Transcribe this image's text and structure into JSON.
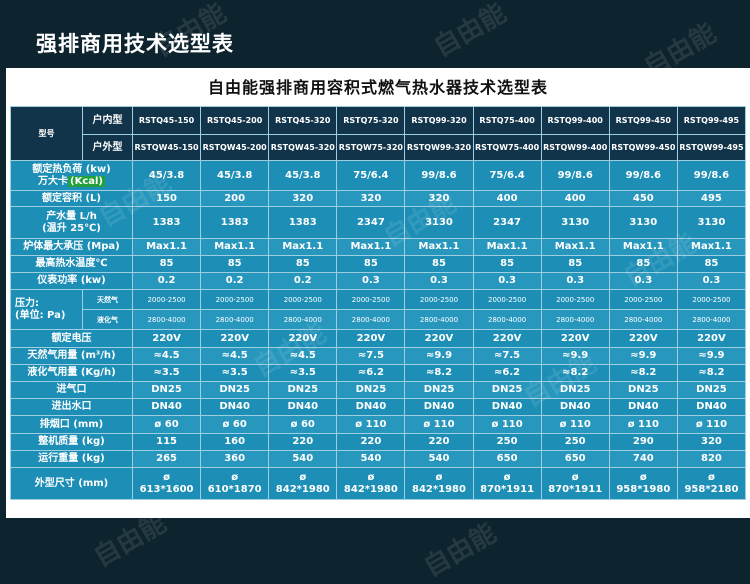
{
  "slide_title": "强排商用技术选型表",
  "table_title": "自由能强排商用容积式燃气热水器技术选型表",
  "corner_label": "型号",
  "indoor_label": "户内型",
  "outdoor_label": "户外型",
  "indoor_models": [
    "RSTQ45-150",
    "RSTQ45-200",
    "RSTQ45-320",
    "RSTQ75-320",
    "RSTQ99-320",
    "RSTQ75-400",
    "RSTQ99-400",
    "RSTQ99-450",
    "RSTQ99-495"
  ],
  "outdoor_models": [
    "RSTQW45-150",
    "RSTQW45-200",
    "RSTQW45-320",
    "RSTQW75-320",
    "RSTQW99-320",
    "RSTQW75-400",
    "RSTQW99-400",
    "RSTQW99-450",
    "RSTQW99-495"
  ],
  "rows": {
    "heat_load": {
      "label_line1": "额定热负荷 (kw)",
      "label_line2": "万大卡",
      "label_unit": "(Kcal)",
      "values": [
        "45/3.8",
        "45/3.8",
        "45/3.8",
        "75/6.4",
        "99/8.6",
        "75/6.4",
        "99/8.6",
        "99/8.6",
        "99/8.6"
      ]
    },
    "volume": {
      "label": "额定容积 (L)",
      "values": [
        "150",
        "200",
        "320",
        "320",
        "320",
        "400",
        "400",
        "450",
        "495"
      ]
    },
    "output": {
      "label_line1": "产水量 L/h",
      "label_line2": "(温升 25℃)",
      "values": [
        "1383",
        "1383",
        "1383",
        "2347",
        "3130",
        "2347",
        "3130",
        "3130",
        "3130"
      ]
    },
    "pressure_max": {
      "label": "炉体最大承压 (Mpa)",
      "values": [
        "Max1.1",
        "Max1.1",
        "Max1.1",
        "Max1.1",
        "Max1.1",
        "Max1.1",
        "Max1.1",
        "Max1.1",
        "Max1.1"
      ]
    },
    "max_temp": {
      "label": "最高热水温度℃",
      "values": [
        "85",
        "85",
        "85",
        "85",
        "85",
        "85",
        "85",
        "85",
        "85"
      ]
    },
    "power": {
      "label": "仪表功率 (kw)",
      "values": [
        "0.2",
        "0.2",
        "0.2",
        "0.3",
        "0.3",
        "0.3",
        "0.3",
        "0.3",
        "0.3"
      ]
    },
    "pressure": {
      "label_line1": "压力:",
      "label_line2": "(单位: Pa)",
      "natural_gas_label": "天然气",
      "lpg_label": "液化气",
      "natural_gas_values": [
        "2000-2500",
        "2000-2500",
        "2000-2500",
        "2000-2500",
        "2000-2500",
        "2000-2500",
        "2000-2500",
        "2000-2500",
        "2000-2500"
      ],
      "lpg_values": [
        "2800-4000",
        "2800-4000",
        "2800-4000",
        "2800-4000",
        "2800-4000",
        "2800-4000",
        "2800-4000",
        "2800-4000",
        "2800-4000"
      ]
    },
    "voltage": {
      "label": "额定电压",
      "values": [
        "220V",
        "220V",
        "220V",
        "220V",
        "220V",
        "220V",
        "220V",
        "220V",
        "220V"
      ]
    },
    "natural_gas_use": {
      "label": "天然气用量 (m³/h)",
      "values": [
        "≈4.5",
        "≈4.5",
        "≈4.5",
        "≈7.5",
        "≈9.9",
        "≈7.5",
        "≈9.9",
        "≈9.9",
        "≈9.9"
      ]
    },
    "lpg_use": {
      "label": "液化气用量 (Kg/h)",
      "values": [
        "≈3.5",
        "≈3.5",
        "≈3.5",
        "≈6.2",
        "≈8.2",
        "≈6.2",
        "≈8.2",
        "≈8.2",
        "≈8.2"
      ]
    },
    "gas_inlet": {
      "label": "进气口",
      "values": [
        "DN25",
        "DN25",
        "DN25",
        "DN25",
        "DN25",
        "DN25",
        "DN25",
        "DN25",
        "DN25"
      ]
    },
    "water_io": {
      "label": "进出水口",
      "values": [
        "DN40",
        "DN40",
        "DN40",
        "DN40",
        "DN40",
        "DN40",
        "DN40",
        "DN40",
        "DN40"
      ]
    },
    "flue": {
      "label": "排烟口 (mm)",
      "values": [
        "ø 60",
        "ø 60",
        "ø 60",
        "ø 110",
        "ø 110",
        "ø 110",
        "ø 110",
        "ø 110",
        "ø 110"
      ]
    },
    "mass": {
      "label": "整机质量 (kg)",
      "values": [
        "115",
        "160",
        "220",
        "220",
        "220",
        "250",
        "250",
        "290",
        "320"
      ]
    },
    "op_weight": {
      "label": "运行重量 (kg)",
      "values": [
        "265",
        "360",
        "540",
        "540",
        "540",
        "650",
        "650",
        "740",
        "820"
      ]
    },
    "dimensions": {
      "label": "外型尺寸 (mm)",
      "symbol": "ø",
      "values": [
        "613*1600",
        "610*1870",
        "842*1980",
        "842*1980",
        "842*1980",
        "870*1911",
        "870*1911",
        "958*1980",
        "958*2180"
      ]
    }
  },
  "watermark": "自由能"
}
